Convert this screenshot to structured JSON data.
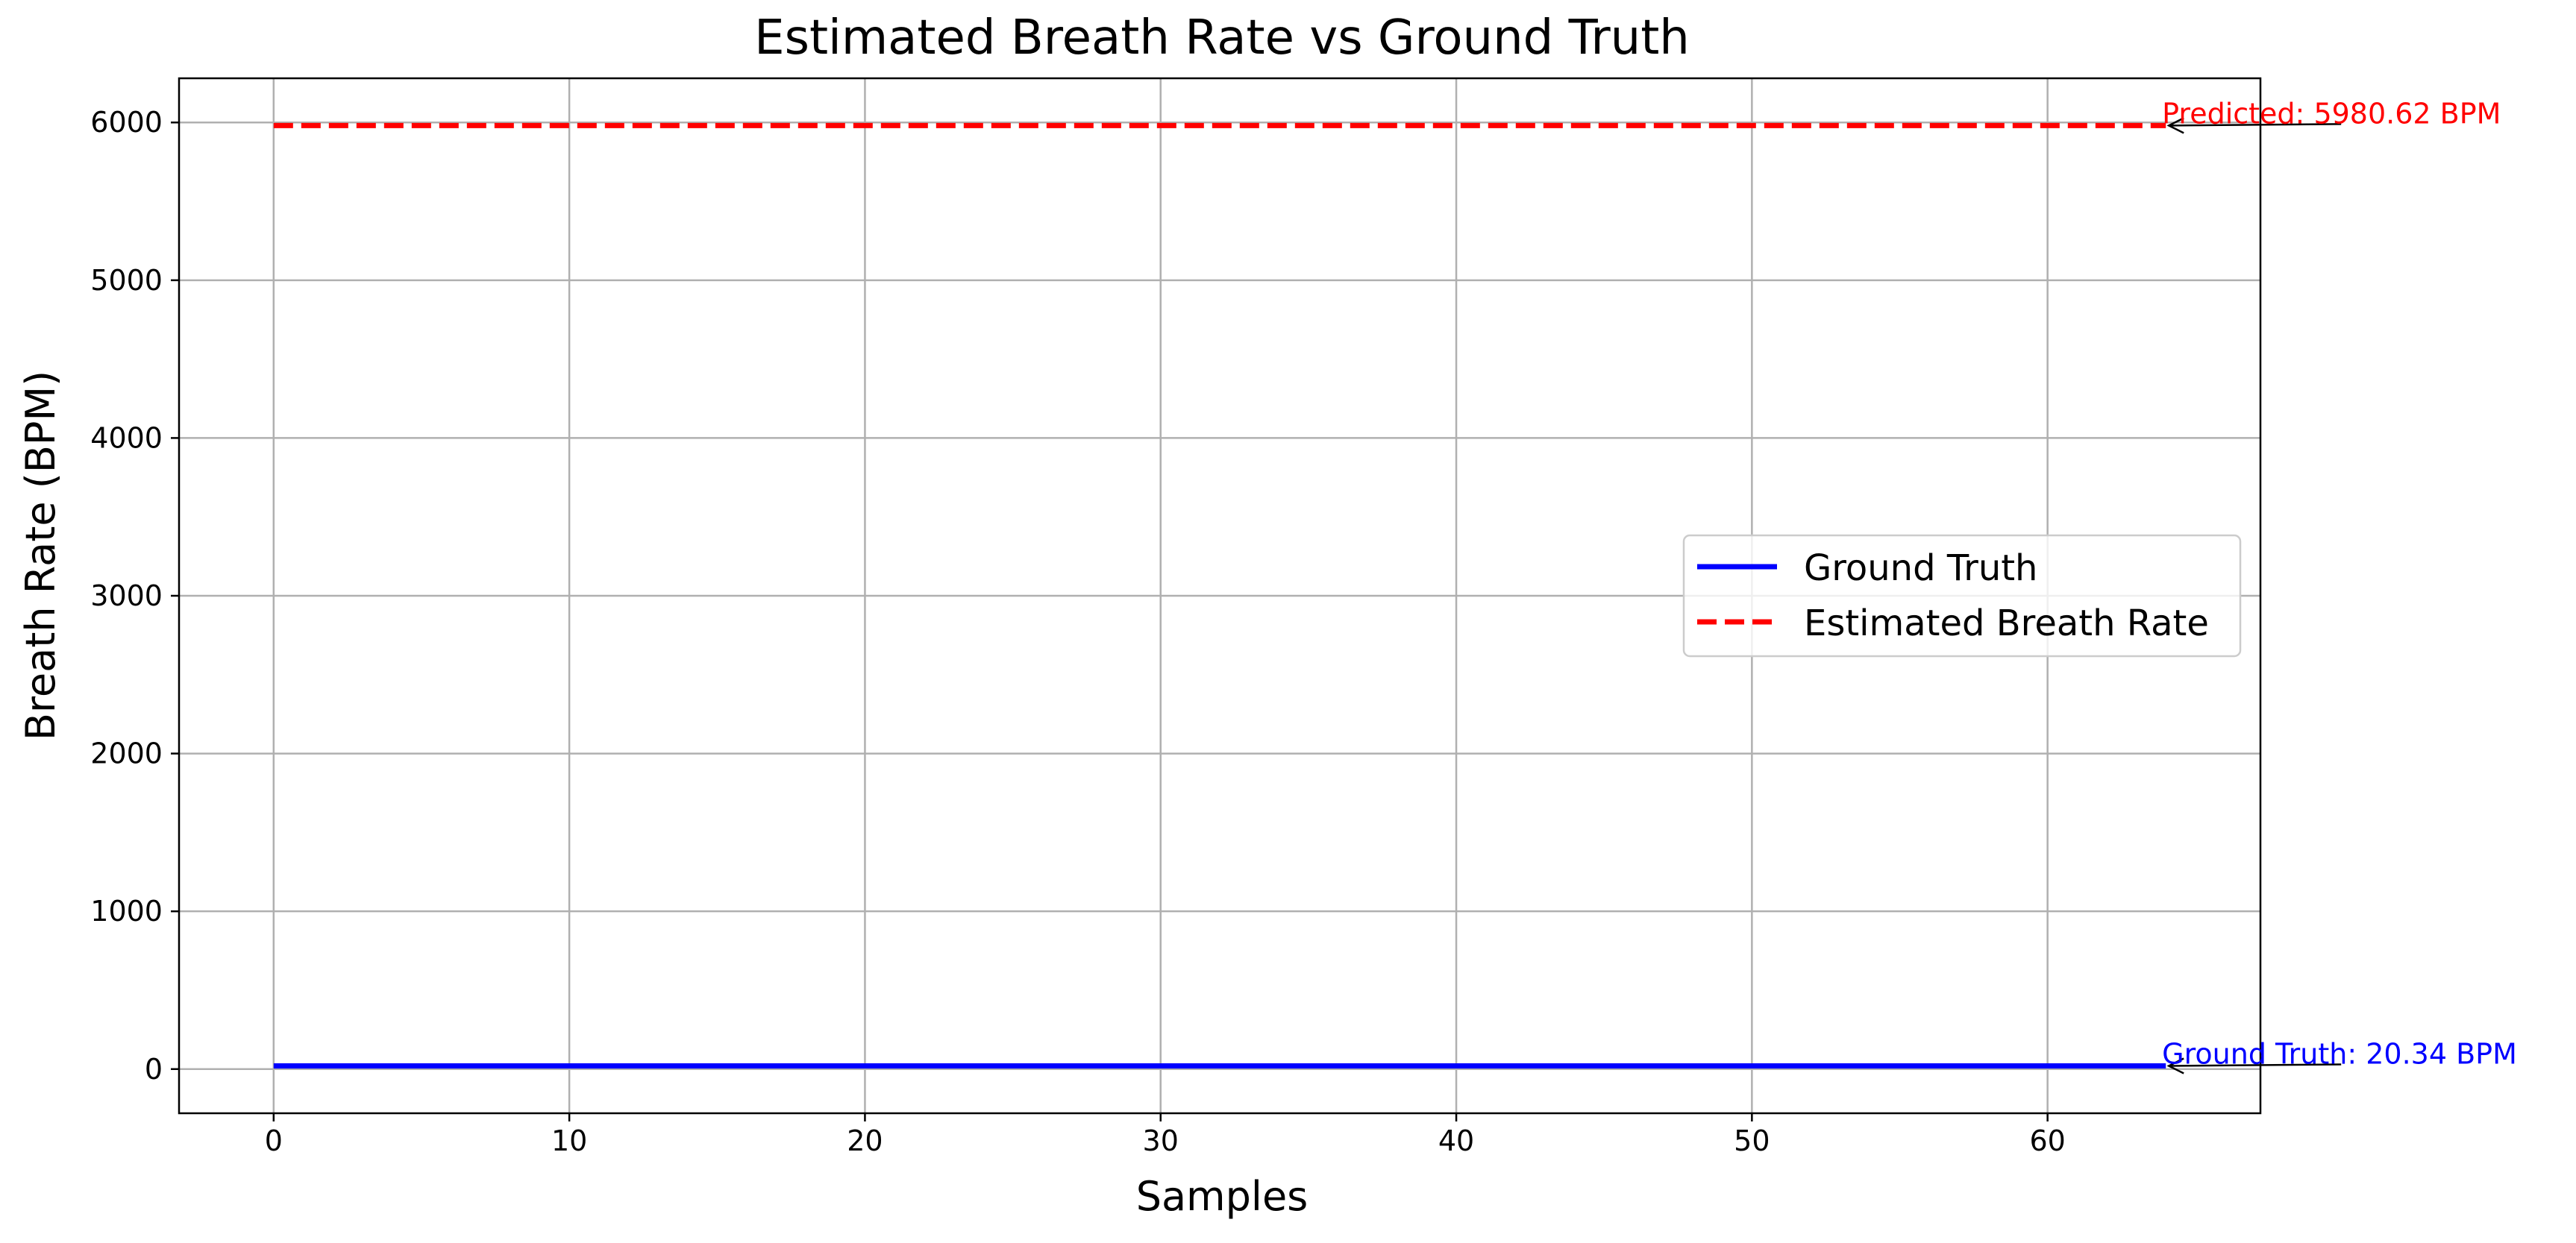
{
  "chart_data": {
    "type": "line",
    "title": "Estimated Breath Rate vs Ground Truth",
    "xlabel": "Samples",
    "ylabel": "Breath Rate (BPM)",
    "xlim": [
      -3.2,
      67.2
    ],
    "ylim": [
      -280,
      6280
    ],
    "xticks": [
      0,
      10,
      20,
      30,
      40,
      50,
      60
    ],
    "yticks": [
      0,
      1000,
      2000,
      3000,
      4000,
      5000,
      6000
    ],
    "grid": true,
    "legend_position": "center-right",
    "x": [
      0,
      64
    ],
    "series": [
      {
        "name": "Ground Truth",
        "color": "#0000ff",
        "style": "solid",
        "values": [
          20.34,
          20.34
        ]
      },
      {
        "name": "Estimated Breath Rate",
        "color": "#ff0000",
        "style": "dashed",
        "values": [
          5980.62,
          5980.62
        ]
      }
    ],
    "annotations": [
      {
        "text": "Predicted: 5980.62 BPM",
        "x": 64,
        "y": 5980.62,
        "color": "#ff0000"
      },
      {
        "text": "Ground Truth: 20.34 BPM",
        "x": 64,
        "y": 20.34,
        "color": "#0000ff"
      }
    ]
  }
}
